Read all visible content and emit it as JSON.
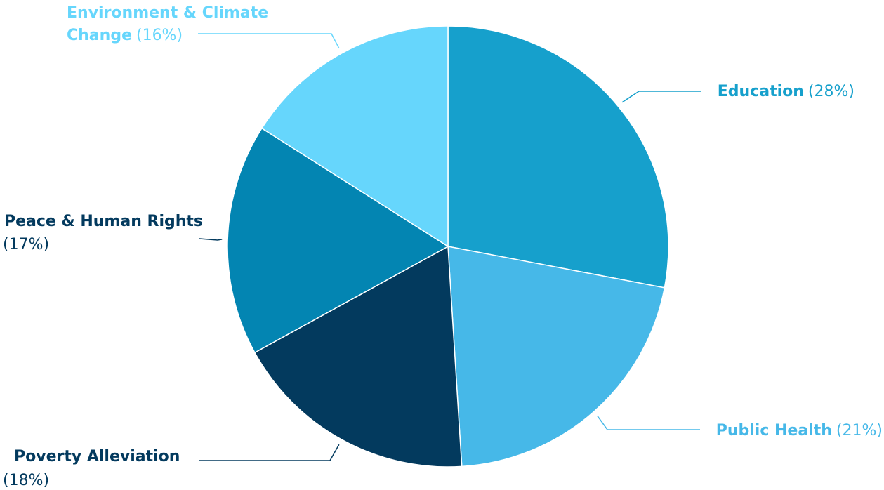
{
  "chart_data": {
    "type": "pie",
    "title": "",
    "start_angle_deg": 0,
    "direction": "clockwise",
    "slices": [
      {
        "label": "Education",
        "value": 28,
        "display": "(28%)",
        "color": "#16a0cc",
        "label_color": "#16a0cc",
        "label_line1": "Education",
        "label_line2": ""
      },
      {
        "label": "Public Health",
        "value": 21,
        "display": "(21%)",
        "color": "#46b8e8",
        "label_color": "#46b8e8",
        "label_line1": "Public Health",
        "label_line2": ""
      },
      {
        "label": "Poverty Alleviation",
        "value": 18,
        "display": "(18%)",
        "color": "#033a5e",
        "label_color": "#033a5e",
        "label_line1": "Poverty Alleviation",
        "label_line2": ""
      },
      {
        "label": "Peace & Human Rights",
        "value": 17,
        "display": "(17%)",
        "color": "#0385b2",
        "label_color": "#033a5e",
        "label_line1": "Peace & Human Rights",
        "label_line2": ""
      },
      {
        "label": "Environment & Climate Change",
        "value": 16,
        "display": "(16%)",
        "color": "#66d6fc",
        "label_color": "#66d6fc",
        "label_line1": "Environment & Climate",
        "label_line2": "Change"
      }
    ]
  }
}
